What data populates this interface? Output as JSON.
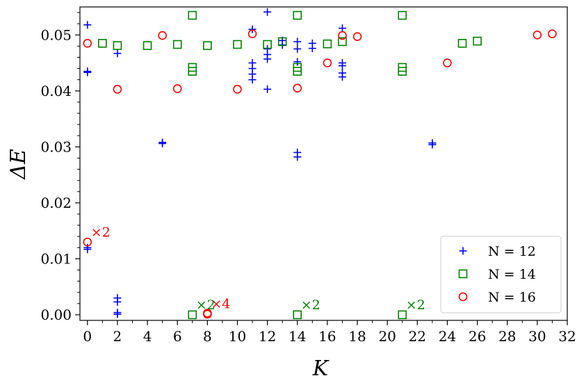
{
  "chart_data": {
    "type": "scatter",
    "title": "",
    "xlabel": "K",
    "ylabel": "ΔE",
    "xlim": [
      -0.5,
      32
    ],
    "ylim": [
      -0.001,
      0.055
    ],
    "xticks": [
      0,
      2,
      4,
      6,
      8,
      10,
      12,
      14,
      16,
      18,
      20,
      22,
      24,
      26,
      28,
      30,
      32
    ],
    "yticks": [
      0.0,
      0.01,
      0.02,
      0.03,
      0.04,
      0.05
    ],
    "ytick_labels": [
      "0.00",
      "0.01",
      "0.02",
      "0.03",
      "0.04",
      "0.05"
    ],
    "grid": false,
    "legend_position": "bottom-right",
    "series": [
      {
        "name": "N = 12",
        "marker": "plus",
        "color": "#0000ff",
        "points": [
          [
            0,
            0.0518
          ],
          [
            0,
            0.0435
          ],
          [
            0,
            0.0433
          ],
          [
            0,
            0.012
          ],
          [
            0,
            0.0117
          ],
          [
            2,
            0.0467
          ],
          [
            2,
            0.003
          ],
          [
            2,
            0.0023
          ],
          [
            2,
            0.0004
          ],
          [
            2,
            0.0001
          ],
          [
            5,
            0.0308
          ],
          [
            5,
            0.0306
          ],
          [
            11,
            0.051
          ],
          [
            11,
            0.045
          ],
          [
            11,
            0.044
          ],
          [
            11,
            0.043
          ],
          [
            11,
            0.042
          ],
          [
            12,
            0.0541
          ],
          [
            12,
            0.0475
          ],
          [
            12,
            0.0465
          ],
          [
            12,
            0.0457
          ],
          [
            12,
            0.0403
          ],
          [
            13,
            0.049
          ],
          [
            13,
            0.0482
          ],
          [
            14,
            0.0488
          ],
          [
            14,
            0.0475
          ],
          [
            14,
            0.0452
          ],
          [
            14,
            0.029
          ],
          [
            14,
            0.0282
          ],
          [
            15,
            0.0485
          ],
          [
            15,
            0.0476
          ],
          [
            17,
            0.0512
          ],
          [
            17,
            0.045
          ],
          [
            17,
            0.0445
          ],
          [
            17,
            0.0432
          ],
          [
            17,
            0.0425
          ],
          [
            23,
            0.0307
          ],
          [
            23,
            0.0304
          ]
        ]
      },
      {
        "name": "N = 14",
        "marker": "square",
        "color": "#008000",
        "points": [
          [
            1,
            0.0485
          ],
          [
            2,
            0.0481
          ],
          [
            4,
            0.0481
          ],
          [
            6,
            0.0483
          ],
          [
            7,
            0.0535
          ],
          [
            7,
            0.0442
          ],
          [
            7,
            0.0435
          ],
          [
            7,
            0.0
          ],
          [
            8,
            0.0481
          ],
          [
            10,
            0.0483
          ],
          [
            12,
            0.0483
          ],
          [
            13,
            0.0488
          ],
          [
            14,
            0.0535
          ],
          [
            14,
            0.0442
          ],
          [
            14,
            0.0435
          ],
          [
            14,
            0.0
          ],
          [
            16,
            0.0484
          ],
          [
            17,
            0.0488
          ],
          [
            21,
            0.0535
          ],
          [
            21,
            0.0442
          ],
          [
            21,
            0.0435
          ],
          [
            21,
            0.0
          ],
          [
            25,
            0.0485
          ],
          [
            26,
            0.0489
          ]
        ]
      },
      {
        "name": "N = 16",
        "marker": "circle",
        "color": "#ff0000",
        "points": [
          [
            0,
            0.0485
          ],
          [
            0,
            0.013
          ],
          [
            2,
            0.0403
          ],
          [
            5,
            0.0499
          ],
          [
            6,
            0.0404
          ],
          [
            8,
            0.0003
          ],
          [
            8,
            0.0001
          ],
          [
            10,
            0.0403
          ],
          [
            11,
            0.0502
          ],
          [
            14,
            0.0405
          ],
          [
            16,
            0.045
          ],
          [
            17,
            0.0499
          ],
          [
            18,
            0.0497
          ],
          [
            24,
            0.045
          ],
          [
            30,
            0.05
          ],
          [
            31,
            0.0502
          ]
        ]
      }
    ],
    "legend": [
      {
        "label": "N = 12",
        "marker": "plus",
        "color": "#0000ff"
      },
      {
        "label": "N = 14",
        "marker": "square",
        "color": "#008000"
      },
      {
        "label": "N = 16",
        "marker": "circle",
        "color": "#ff0000"
      }
    ],
    "annotations": [
      {
        "text": "×2",
        "x": 0,
        "y": 0.013,
        "color": "#ff0000"
      },
      {
        "text": "×2",
        "x": 7,
        "y": 0.0,
        "color": "#008000"
      },
      {
        "text": "×4",
        "x": 8,
        "y": 0.0002,
        "color": "#ff0000"
      },
      {
        "text": "×2",
        "x": 14,
        "y": 0.0,
        "color": "#008000"
      },
      {
        "text": "×2",
        "x": 21,
        "y": 0.0,
        "color": "#008000"
      }
    ]
  }
}
